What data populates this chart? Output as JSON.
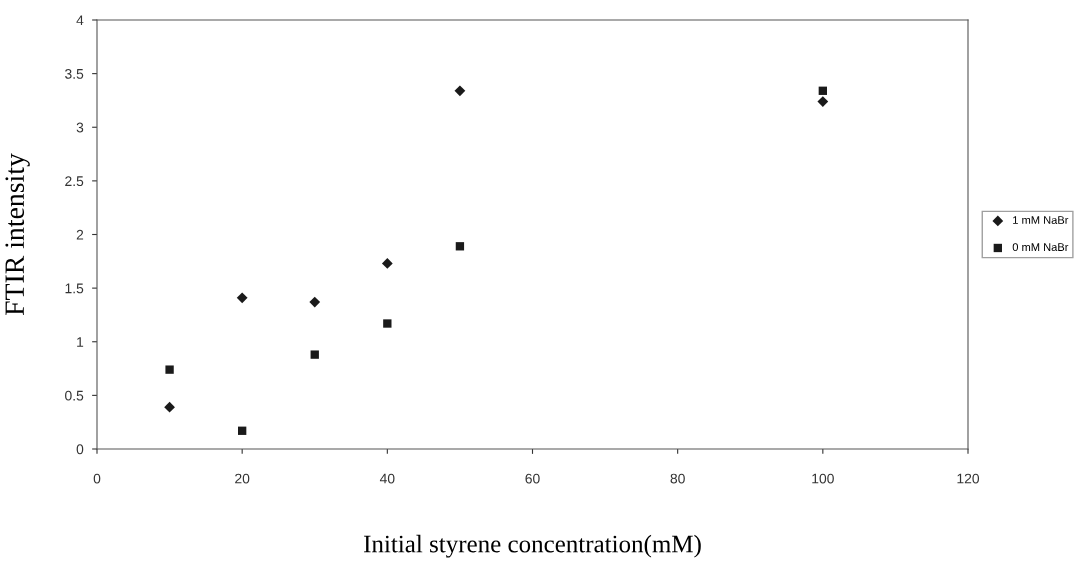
{
  "chart_data": {
    "type": "scatter",
    "xlabel": "Initial styrene concentration(mM)",
    "ylabel": "FTIR intensity",
    "x": [
      10,
      20,
      30,
      40,
      50,
      100
    ],
    "series": [
      {
        "name": "1 mM NaBr",
        "color": "#1a1a1a",
        "marker": "diamond",
        "values": [
          0.39,
          1.41,
          1.37,
          1.73,
          3.34,
          3.24
        ]
      },
      {
        "name": "0 mM NaBr",
        "color": "#1a1a1a",
        "marker": "square",
        "values": [
          0.74,
          0.17,
          0.88,
          1.17,
          1.89,
          3.34
        ]
      }
    ],
    "xlim": [
      0,
      120
    ],
    "xticks": [
      0,
      20,
      40,
      60,
      80,
      100,
      120
    ],
    "ylim": [
      0,
      4
    ],
    "yticks": [
      0,
      0.5,
      1,
      1.5,
      2,
      2.5,
      3,
      3.5,
      4
    ],
    "grid": false,
    "legend": "right"
  }
}
